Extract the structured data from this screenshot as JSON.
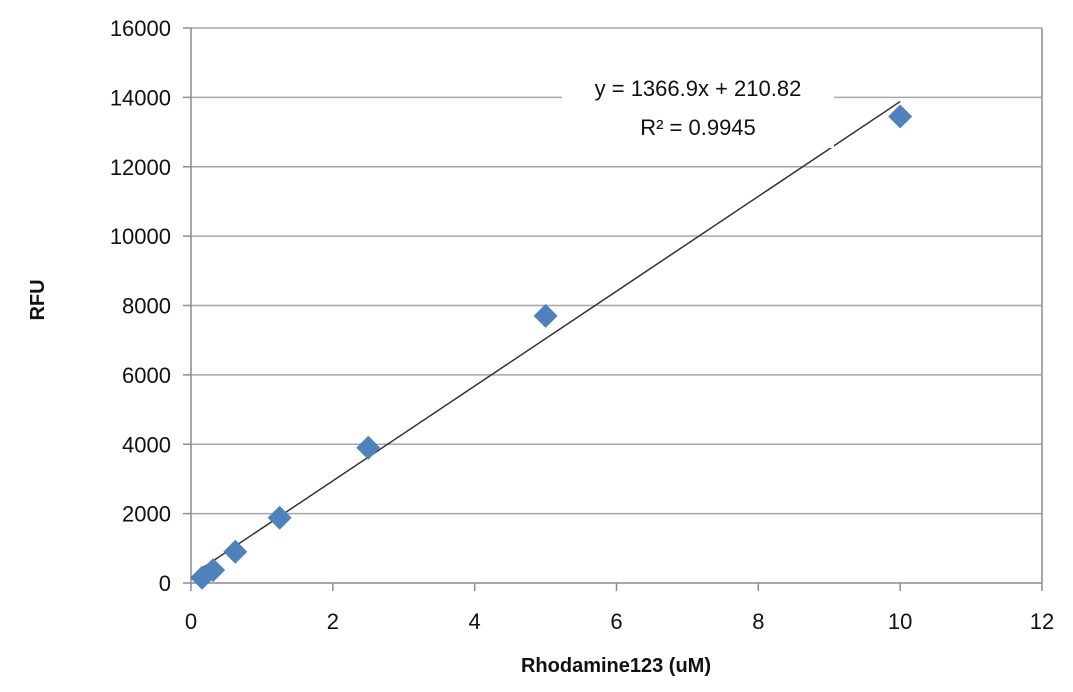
{
  "chart_data": {
    "type": "scatter",
    "title": "",
    "xlabel": "Rhodamine123 (uM)",
    "ylabel": "RFU",
    "xlim": [
      0,
      12
    ],
    "ylim": [
      0,
      16000
    ],
    "x_ticks": [
      0,
      2,
      4,
      6,
      8,
      10,
      12
    ],
    "y_ticks": [
      0,
      2000,
      4000,
      6000,
      8000,
      10000,
      12000,
      14000,
      16000
    ],
    "grid": {
      "horizontal": true,
      "vertical": false
    },
    "legend": null,
    "series": [
      {
        "name": "RFU",
        "marker": "diamond",
        "color": "#4f81bd",
        "x": [
          0.156,
          0.3125,
          0.625,
          1.25,
          2.5,
          5,
          10
        ],
        "y": [
          150,
          370,
          900,
          1880,
          3900,
          7700,
          13450
        ]
      }
    ],
    "trendline": {
      "type": "linear",
      "slope": 1366.9,
      "intercept": 210.82,
      "r_squared": 0.9945,
      "x_range": [
        0.156,
        10
      ],
      "color": "#333333",
      "equation_label": "y = 1366.9x + 210.82",
      "r2_label": "R² = 0.9945"
    }
  },
  "colors": {
    "marker": "#4f81bd",
    "gridline": "#a6a6a6",
    "axis": "#8c8c8c",
    "trendline": "#333333"
  }
}
